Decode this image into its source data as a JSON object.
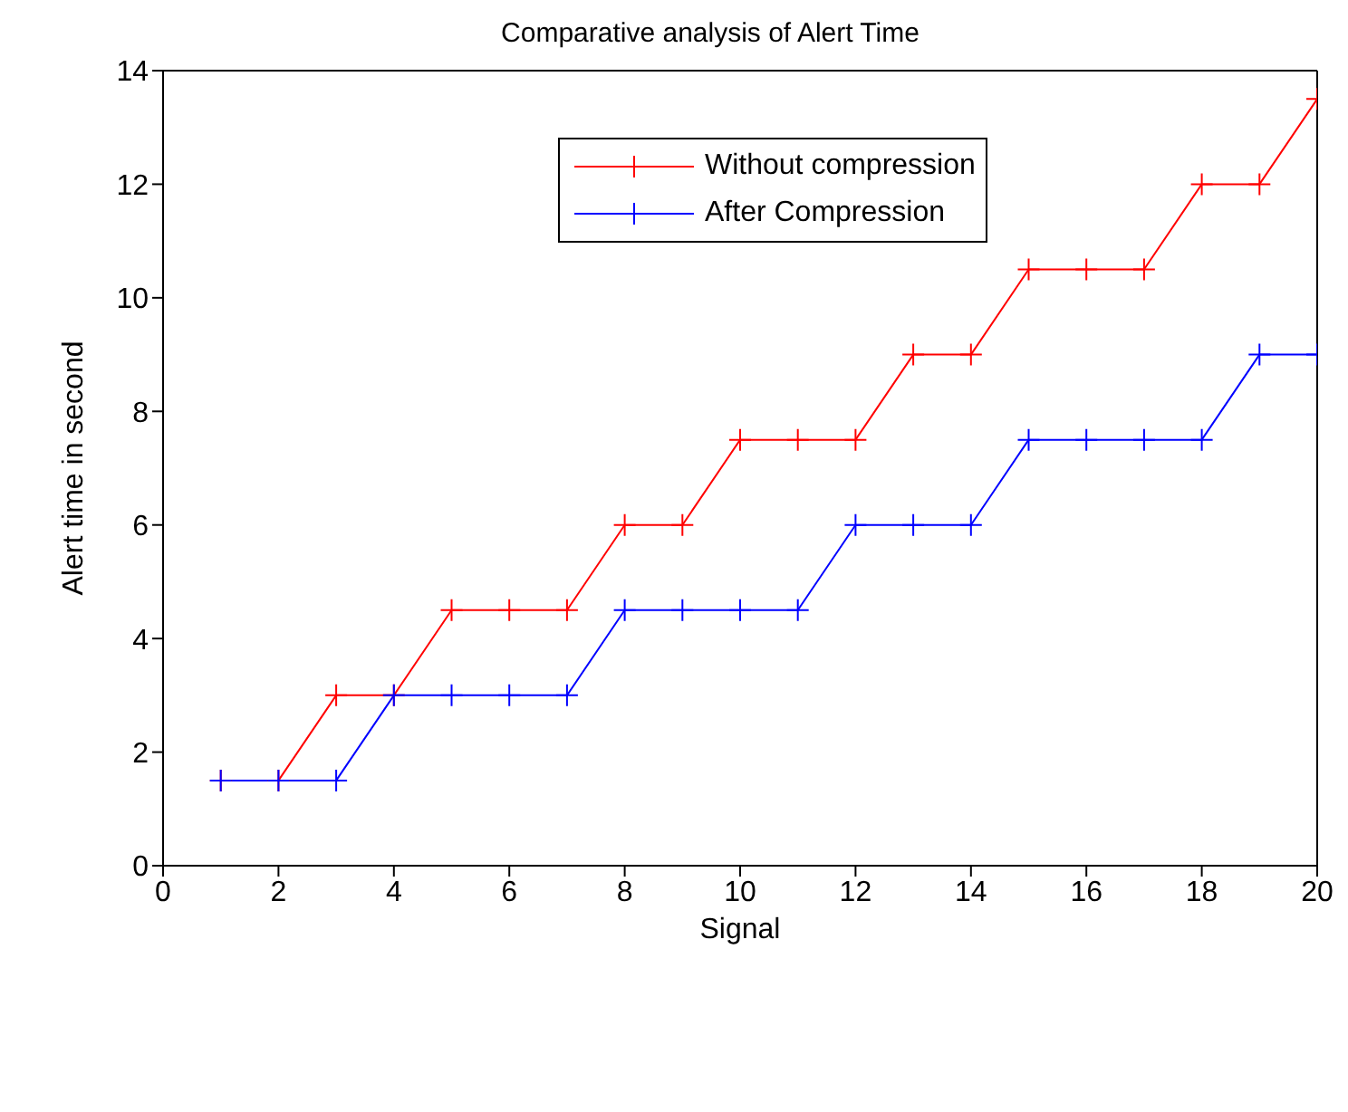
{
  "chart_data": {
    "type": "line",
    "title": "Comparative analysis of Alert Time",
    "xlabel": "Signal",
    "ylabel": "Alert time in second",
    "x": [
      1,
      2,
      3,
      4,
      5,
      6,
      7,
      8,
      9,
      10,
      11,
      12,
      13,
      14,
      15,
      16,
      17,
      18,
      19,
      20
    ],
    "series": [
      {
        "name": "Without compression",
        "color": "#ff0000",
        "values": [
          1.5,
          1.5,
          3,
          3,
          4.5,
          4.5,
          4.5,
          6,
          6,
          7.5,
          7.5,
          7.5,
          9,
          9,
          10.5,
          10.5,
          10.5,
          12,
          12,
          13.5
        ]
      },
      {
        "name": "After Compression",
        "color": "#0000ff",
        "values": [
          1.5,
          1.5,
          1.5,
          3,
          3,
          3,
          3,
          4.5,
          4.5,
          4.5,
          4.5,
          6,
          6,
          6,
          7.5,
          7.5,
          7.5,
          7.5,
          9,
          9
        ]
      }
    ],
    "xlim": [
      0,
      20
    ],
    "xticks": [
      0,
      2,
      4,
      6,
      8,
      10,
      12,
      14,
      16,
      18,
      20
    ],
    "ylim": [
      0,
      14
    ],
    "yticks": [
      0,
      2,
      4,
      6,
      8,
      10,
      12,
      14
    ],
    "marker": "cross",
    "legend": "top right",
    "grid": false
  }
}
